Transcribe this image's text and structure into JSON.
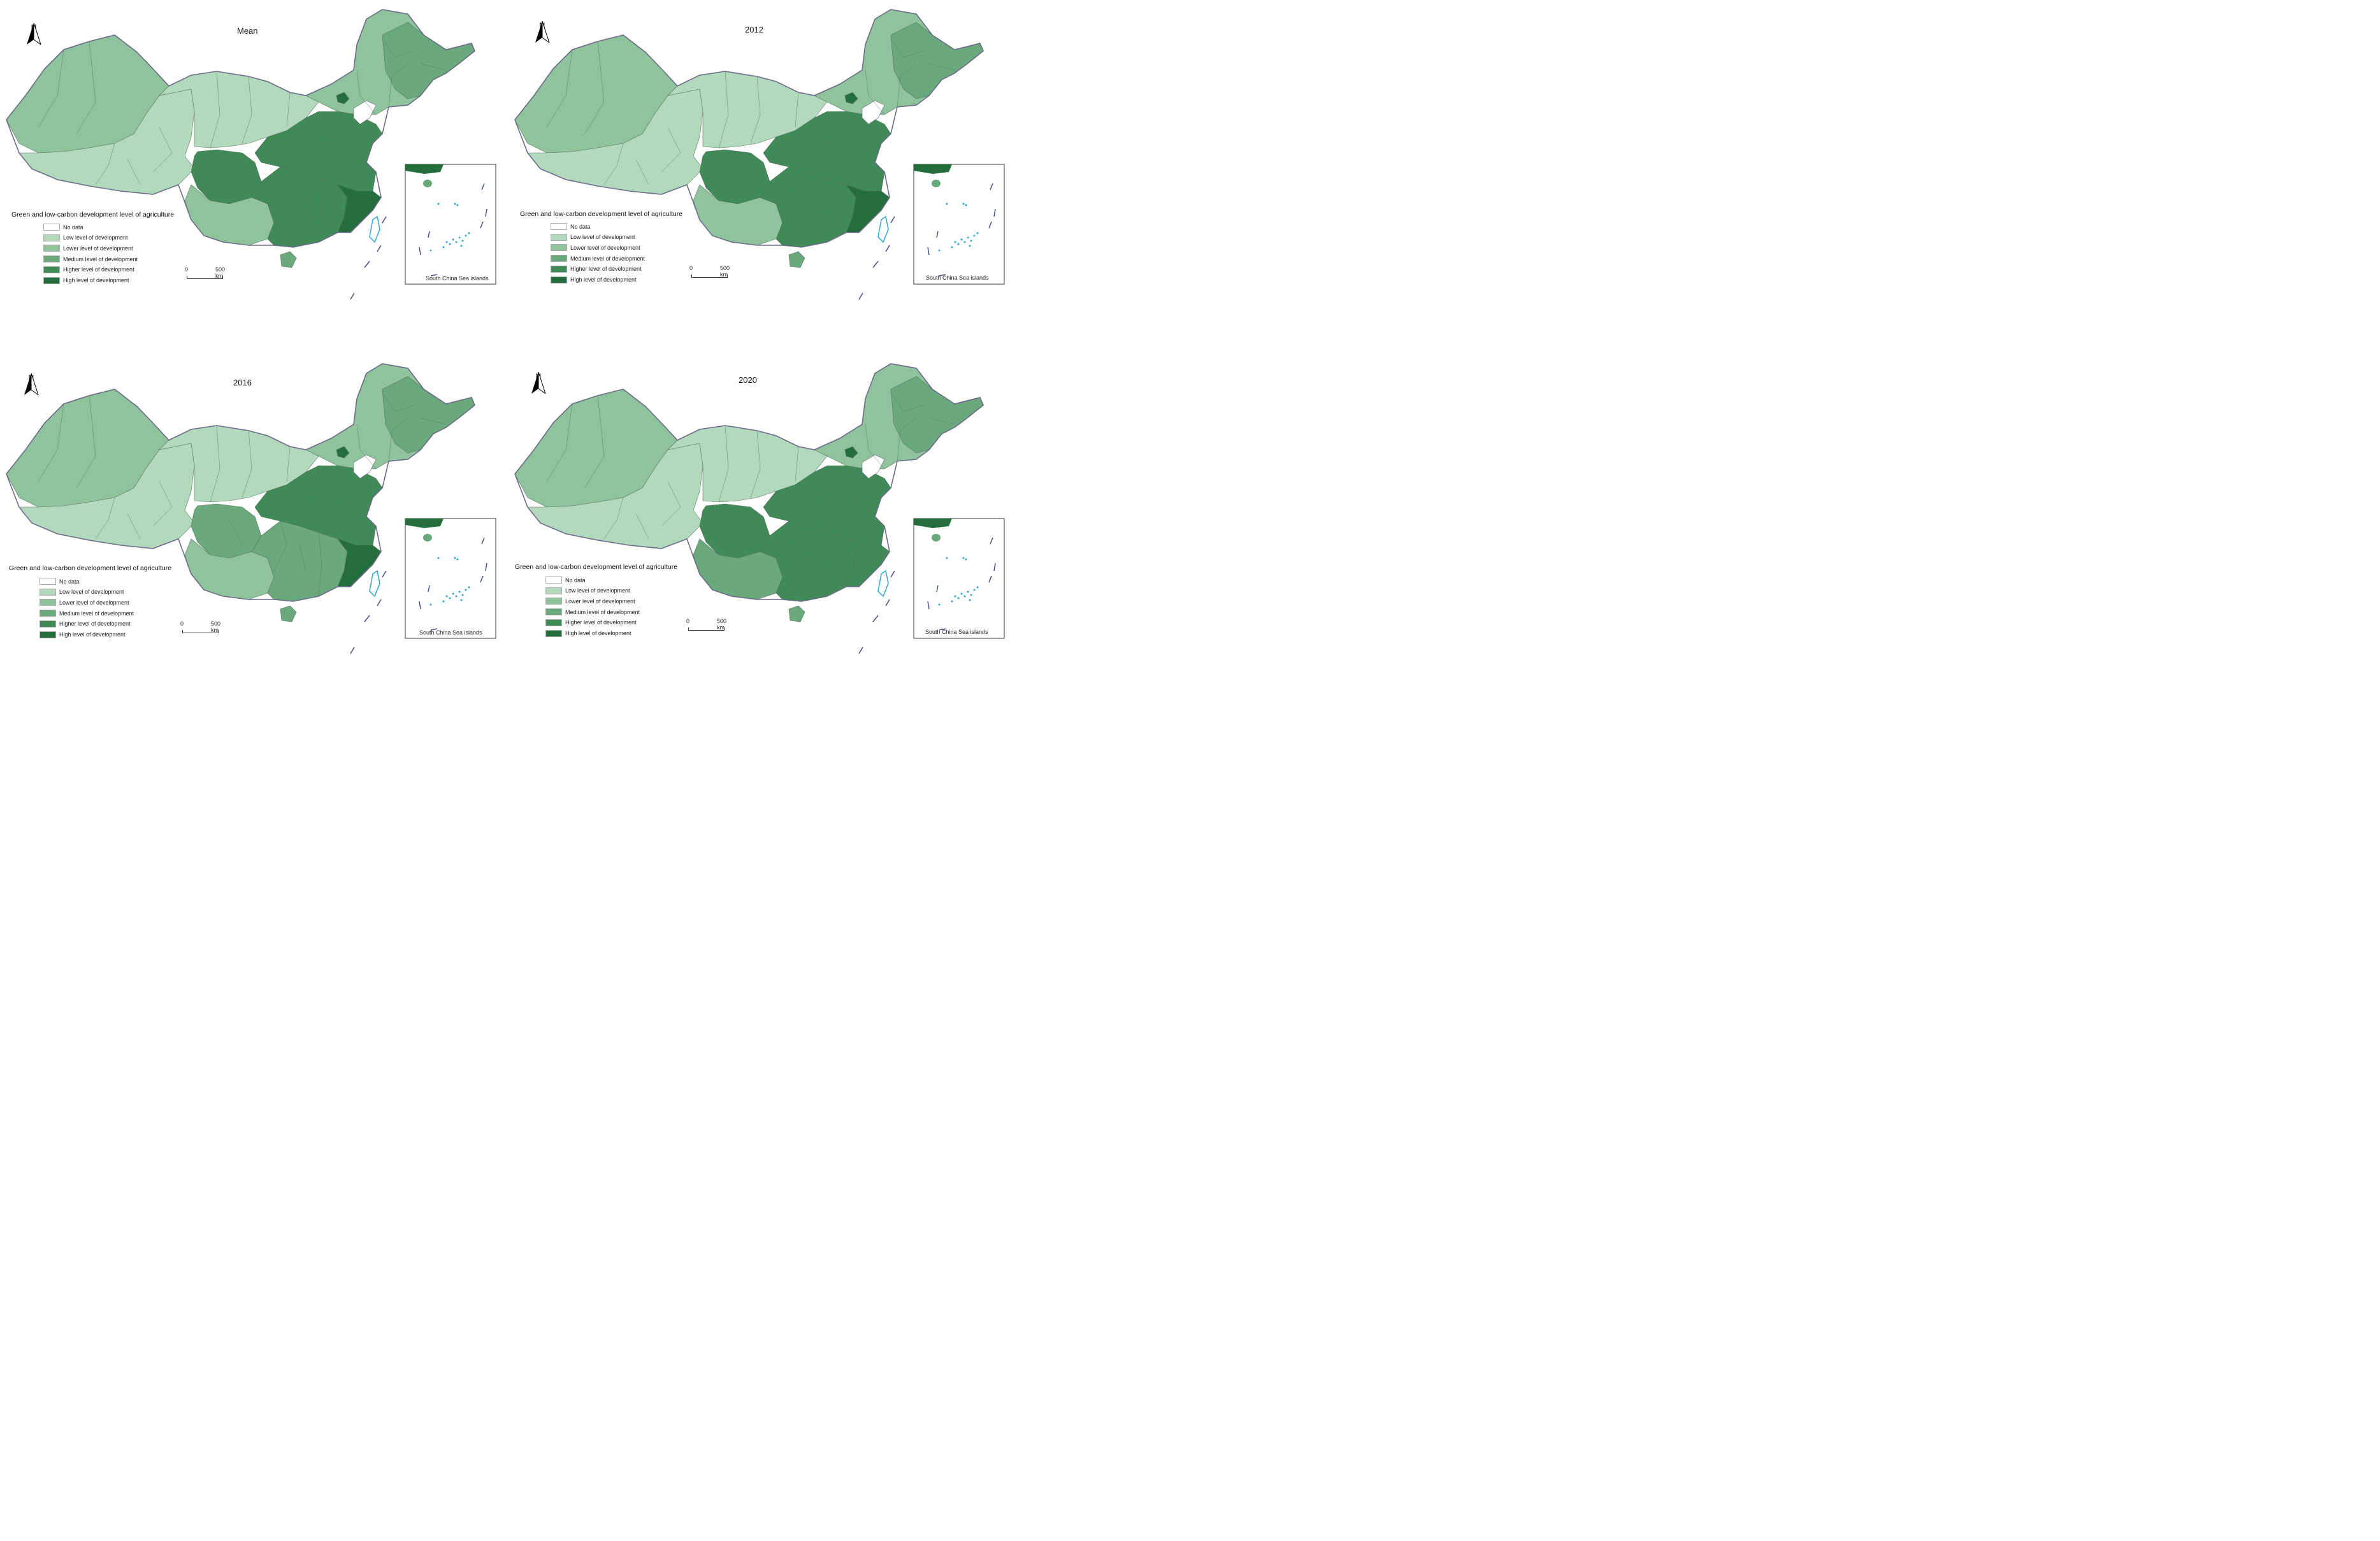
{
  "colors": {
    "no_data": "#ffffff",
    "low": "#b3d9bc",
    "lower": "#8fc39c",
    "medium": "#6aa97c",
    "higher": "#3f8a57",
    "high": "#246e3d",
    "border": "#6a6a8a",
    "water": "#2ea6d6"
  },
  "legend": {
    "title": "Green and low-carbon development level of agriculture",
    "items": [
      {
        "label": "No data",
        "color_key": "no_data"
      },
      {
        "label": "Low level of development",
        "color_key": "low"
      },
      {
        "label": "Lower level of development",
        "color_key": "lower"
      },
      {
        "label": "Medium level of development",
        "color_key": "medium"
      },
      {
        "label": "Higher level of development",
        "color_key": "higher"
      },
      {
        "label": "High level of development",
        "color_key": "high"
      }
    ]
  },
  "north_label": "N",
  "scale": {
    "zero": "0",
    "distance": "500 km"
  },
  "inset_label": "South China Sea islands",
  "panels": [
    {
      "title": "Mean",
      "levels": {
        "west": "lower",
        "tibet": "low",
        "central_north": "low",
        "northeast": "lower",
        "northeast_east": "medium",
        "sichuan": "higher",
        "south": "higher",
        "southeast": "high",
        "east": "higher",
        "southwest": "lower",
        "beijing": "high"
      }
    },
    {
      "title": "2012",
      "levels": {
        "west": "lower",
        "tibet": "low",
        "central_north": "low",
        "northeast": "lower",
        "northeast_east": "medium",
        "sichuan": "higher",
        "south": "higher",
        "southeast": "high",
        "east": "higher",
        "southwest": "lower",
        "beijing": "high"
      }
    },
    {
      "title": "2016",
      "levels": {
        "west": "lower",
        "tibet": "low",
        "central_north": "low",
        "northeast": "lower",
        "northeast_east": "medium",
        "sichuan": "medium",
        "south": "medium",
        "southeast": "high",
        "east": "higher",
        "southwest": "lower",
        "beijing": "high"
      }
    },
    {
      "title": "2020",
      "levels": {
        "west": "lower",
        "tibet": "low",
        "central_north": "low",
        "northeast": "lower",
        "northeast_east": "medium",
        "sichuan": "higher",
        "south": "higher",
        "southeast": "higher",
        "east": "higher",
        "southwest": "medium",
        "beijing": "high"
      }
    }
  ]
}
